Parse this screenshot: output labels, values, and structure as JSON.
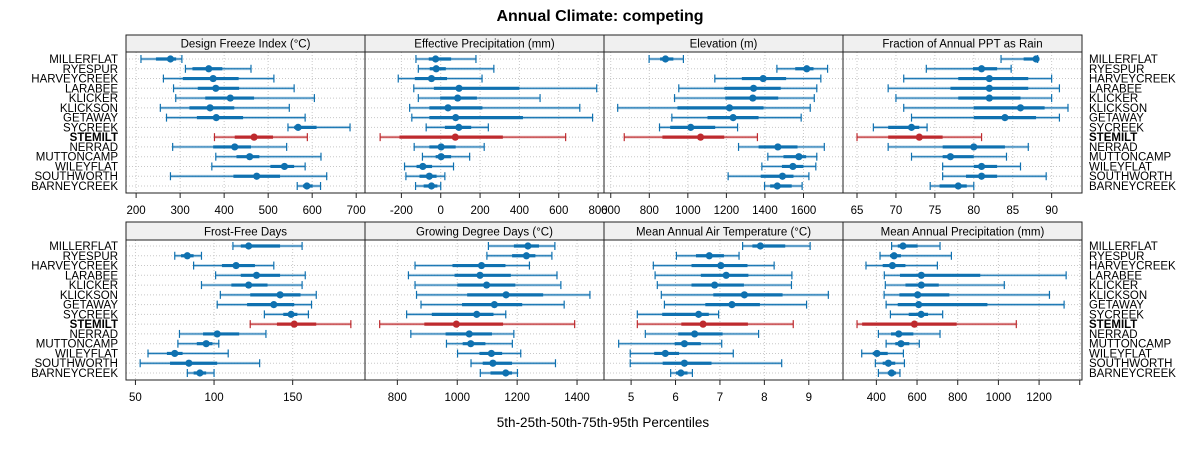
{
  "chart_data": {
    "type": "dot-interval",
    "title": "Annual Climate: competing",
    "xlabel": "5th-25th-50th-75th-95th Percentiles",
    "grid": true,
    "highlight_site": "STEMILT",
    "colors": {
      "default": "#0f71b0",
      "highlight": "#be2a2e",
      "strip_bg": "#f0f0f0",
      "grid": "#c8c8c8"
    },
    "sites": [
      "MILLERFLAT",
      "RYESPUR",
      "HARVEYCREEK",
      "LARABEE",
      "KLICKER",
      "KLICKSON",
      "GETAWAY",
      "SYCREEK",
      "STEMILT",
      "NERRAD",
      "MUTTONCAMP",
      "WILEYFLAT",
      "SOUTHWORTH",
      "BARNEYCREEK"
    ],
    "percentile_keys": [
      "p5",
      "p25",
      "p50",
      "p75",
      "p95"
    ],
    "panels": [
      {
        "name": "Design Freeze Index (°C)",
        "xlim": [
          177,
          720
        ],
        "ticks": [
          200,
          300,
          400,
          500,
          600,
          700
        ],
        "values": [
          [
            211,
            245,
            278,
            291,
            304
          ],
          [
            312,
            328,
            365,
            396,
            461
          ],
          [
            262,
            306,
            375,
            433,
            513
          ],
          [
            285,
            340,
            381,
            434,
            559
          ],
          [
            290,
            357,
            414,
            468,
            605
          ],
          [
            255,
            321,
            368,
            423,
            548
          ],
          [
            269,
            338,
            382,
            443,
            584
          ],
          [
            545,
            559,
            568,
            610,
            686
          ],
          [
            378,
            424,
            468,
            511,
            589
          ],
          [
            283,
            375,
            424,
            461,
            542
          ],
          [
            381,
            428,
            458,
            480,
            620
          ],
          [
            372,
            505,
            537,
            559,
            584
          ],
          [
            278,
            421,
            474,
            527,
            633
          ],
          [
            566,
            579,
            588,
            601,
            619
          ]
        ]
      },
      {
        "name": "Effective Precipitation (mm)",
        "xlim": [
          -385,
          830
        ],
        "ticks": [
          -200,
          0,
          200,
          400,
          600,
          800
        ],
        "values": [
          [
            -126,
            -61,
            -26,
            53,
            179
          ],
          [
            -114,
            -56,
            -23,
            26,
            270
          ],
          [
            -216,
            -132,
            -47,
            32,
            210
          ],
          [
            -137,
            -35,
            93,
            400,
            793
          ],
          [
            -114,
            -3,
            86,
            184,
            505
          ],
          [
            -158,
            -58,
            37,
            212,
            707
          ],
          [
            -147,
            -58,
            76,
            418,
            772
          ],
          [
            -74,
            21,
            92,
            155,
            242
          ],
          [
            -308,
            -210,
            74,
            316,
            635
          ],
          [
            -135,
            -58,
            2,
            76,
            221
          ],
          [
            -93,
            -26,
            2,
            53,
            147
          ],
          [
            -184,
            -123,
            -91,
            -44,
            65
          ],
          [
            -177,
            -108,
            -58,
            -21,
            21
          ],
          [
            -128,
            -87,
            -47,
            -17,
            0
          ]
        ]
      },
      {
        "name": "Elevation (m)",
        "xlim": [
          565,
          1805
        ],
        "ticks": [
          600,
          800,
          1000,
          1200,
          1400,
          1600
        ],
        "values": [
          [
            799,
            856,
            884,
            925,
            977
          ],
          [
            1462,
            1557,
            1617,
            1652,
            1725
          ],
          [
            1140,
            1280,
            1391,
            1510,
            1690
          ],
          [
            953,
            1189,
            1341,
            1482,
            1669
          ],
          [
            931,
            1194,
            1337,
            1469,
            1656
          ],
          [
            636,
            946,
            1216,
            1393,
            1635
          ],
          [
            917,
            1102,
            1235,
            1367,
            1588
          ],
          [
            853,
            908,
            1015,
            1142,
            1258
          ],
          [
            670,
            868,
            1066,
            1189,
            1361
          ],
          [
            1263,
            1367,
            1467,
            1569,
            1708
          ],
          [
            1415,
            1496,
            1576,
            1614,
            1669
          ],
          [
            1384,
            1488,
            1545,
            1600,
            1664
          ],
          [
            1209,
            1378,
            1491,
            1548,
            1628
          ],
          [
            1398,
            1427,
            1464,
            1539,
            1593
          ]
        ]
      },
      {
        "name": "Fraction of Annual PPT as Rain",
        "xlim": [
          63.2,
          93.9
        ],
        "ticks": [
          65,
          70,
          75,
          80,
          85,
          90
        ],
        "values": [
          [
            83.5,
            86.4,
            88.0,
            88.1,
            88.2
          ],
          [
            73.9,
            79.9,
            81.0,
            83.0,
            84.8
          ],
          [
            71.0,
            78.0,
            82.0,
            87.0,
            90.0
          ],
          [
            69.0,
            77.0,
            82.0,
            87.0,
            91.0
          ],
          [
            70.0,
            78.0,
            82.0,
            86.0,
            90.0
          ],
          [
            71.0,
            80.0,
            86.0,
            89.1,
            92.1
          ],
          [
            72.0,
            80.0,
            84.0,
            88.0,
            91.0
          ],
          [
            67.1,
            69.0,
            72.0,
            73.0,
            74.0
          ],
          [
            65.0,
            69.0,
            73.0,
            76.0,
            81.0
          ],
          [
            69.0,
            76.0,
            80.0,
            84.0,
            87.0
          ],
          [
            72.0,
            76.0,
            77.0,
            80.0,
            84.2
          ],
          [
            76.0,
            80.0,
            81.0,
            83.0,
            86.0
          ],
          [
            76.0,
            79.0,
            81.0,
            83.0,
            89.3
          ],
          [
            74.4,
            75.6,
            78.0,
            79.1,
            80.0
          ]
        ]
      },
      {
        "name": "Frost-Free Days",
        "xlim": [
          44,
          196
        ],
        "ticks": [
          50,
          100,
          150
        ],
        "values": [
          [
            112,
            117,
            122,
            142,
            156
          ],
          [
            75,
            79,
            83,
            87,
            92
          ],
          [
            87,
            105,
            114,
            126,
            138
          ],
          [
            101,
            117,
            127,
            142,
            158
          ],
          [
            92,
            111,
            122,
            134,
            156
          ],
          [
            104,
            123,
            142,
            155,
            165
          ],
          [
            102,
            121,
            138,
            151,
            162
          ],
          [
            132,
            144,
            149,
            153,
            160
          ],
          [
            123,
            140,
            151,
            165,
            187
          ],
          [
            78,
            93,
            102,
            116,
            133
          ],
          [
            77,
            89,
            95,
            99,
            103
          ],
          [
            58,
            70,
            75,
            80,
            109
          ],
          [
            53,
            72,
            84,
            102,
            129
          ],
          [
            83,
            87,
            91,
            95,
            100
          ]
        ]
      },
      {
        "name": "Growing Degree Days (°C)",
        "xlim": [
          692,
          1490
        ],
        "ticks": [
          800,
          1000,
          1200,
          1400
        ],
        "values": [
          [
            1104,
            1189,
            1236,
            1273,
            1326
          ],
          [
            1099,
            1183,
            1231,
            1261,
            1316
          ],
          [
            859,
            984,
            1081,
            1161,
            1241
          ],
          [
            837,
            991,
            1076,
            1179,
            1333
          ],
          [
            859,
            1000,
            1098,
            1194,
            1346
          ],
          [
            864,
            1033,
            1163,
            1287,
            1443
          ],
          [
            879,
            1016,
            1124,
            1217,
            1357
          ],
          [
            831,
            915,
            1065,
            1121,
            1162
          ],
          [
            741,
            890,
            997,
            1153,
            1392
          ],
          [
            845,
            961,
            1040,
            1116,
            1189
          ],
          [
            964,
            1018,
            1045,
            1094,
            1184
          ],
          [
            1001,
            1074,
            1114,
            1150,
            1212
          ],
          [
            1046,
            1085,
            1119,
            1183,
            1328
          ],
          [
            1077,
            1111,
            1162,
            1183,
            1201
          ]
        ]
      },
      {
        "name": "Mean Annual Air Temperature (°C)",
        "xlim": [
          4.39,
          9.77
        ],
        "ticks": [
          5,
          6,
          7,
          8,
          9
        ],
        "values": [
          [
            7.51,
            7.73,
            7.91,
            8.47,
            9.03
          ],
          [
            6.02,
            6.46,
            6.76,
            7.09,
            7.43
          ],
          [
            5.5,
            6.36,
            7.02,
            7.62,
            8.22
          ],
          [
            5.54,
            6.57,
            7.14,
            7.64,
            8.62
          ],
          [
            5.59,
            6.36,
            6.88,
            7.54,
            8.61
          ],
          [
            5.68,
            6.85,
            7.55,
            8.41,
            9.44
          ],
          [
            5.75,
            6.67,
            7.27,
            7.9,
            8.95
          ],
          [
            5.14,
            5.7,
            6.52,
            6.75,
            6.97
          ],
          [
            5.14,
            6.13,
            6.62,
            7.63,
            8.65
          ],
          [
            5.32,
            6.06,
            6.43,
            7.06,
            7.87
          ],
          [
            4.72,
            5.98,
            6.2,
            6.57,
            7.04
          ],
          [
            4.98,
            5.52,
            5.77,
            6.08,
            7.3
          ],
          [
            4.98,
            5.71,
            6.2,
            6.81,
            8.39
          ],
          [
            5.89,
            6.01,
            6.12,
            6.27,
            6.38
          ]
        ]
      },
      {
        "name": "Mean Annual Precipitation (mm)",
        "xlim": [
          236,
          1411
        ],
        "ticks": [
          400,
          600,
          800,
          1000,
          1200,
          1400
        ],
        "tick_labels": [
          "400",
          "600",
          "800",
          "1000",
          "1200",
          ""
        ],
        "values": [
          [
            475,
            505,
            531,
            603,
            713
          ],
          [
            418,
            467,
            487,
            521,
            769
          ],
          [
            349,
            431,
            479,
            543,
            700
          ],
          [
            439,
            516,
            621,
            911,
            1333
          ],
          [
            444,
            543,
            621,
            707,
            1029
          ],
          [
            438,
            513,
            603,
            759,
            1251
          ],
          [
            448,
            505,
            608,
            946,
            1323
          ],
          [
            469,
            559,
            620,
            654,
            726
          ],
          [
            305,
            330,
            587,
            795,
            1088
          ],
          [
            410,
            472,
            510,
            582,
            713
          ],
          [
            448,
            493,
            521,
            562,
            611
          ],
          [
            328,
            382,
            403,
            456,
            533
          ],
          [
            395,
            431,
            459,
            493,
            538
          ],
          [
            410,
            456,
            475,
            497,
            516
          ]
        ]
      }
    ]
  }
}
